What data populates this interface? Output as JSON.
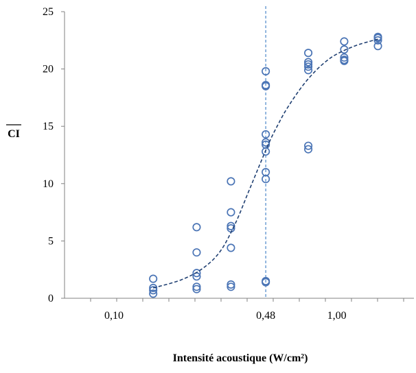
{
  "chart_data": {
    "type": "scatter",
    "xlabel": "Intensité acoustique (W/cm²)",
    "ylabel": "CI",
    "ylabel_overline": true,
    "x_tick_labels": [
      {
        "x": 0.1,
        "label": "0,10"
      },
      {
        "x": 0.48,
        "label": "0,48"
      },
      {
        "x": 1.0,
        "label": "1,00"
      }
    ],
    "y_ticks": [
      0,
      5,
      10,
      15,
      20,
      25
    ],
    "ylim": [
      0,
      25
    ],
    "x_axis_display_range": [
      0.06,
      2.22
    ],
    "x_axis_note": "log-like spacing",
    "marker": "open-circle",
    "marker_color": "#4a74b5",
    "points": [
      {
        "x": 0.15,
        "y": 1.7
      },
      {
        "x": 0.15,
        "y": 0.9
      },
      {
        "x": 0.15,
        "y": 0.7
      },
      {
        "x": 0.15,
        "y": 0.4
      },
      {
        "x": 0.235,
        "y": 6.2
      },
      {
        "x": 0.235,
        "y": 4.0
      },
      {
        "x": 0.235,
        "y": 2.2
      },
      {
        "x": 0.235,
        "y": 1.9
      },
      {
        "x": 0.235,
        "y": 1.0
      },
      {
        "x": 0.235,
        "y": 0.8
      },
      {
        "x": 0.335,
        "y": 10.2
      },
      {
        "x": 0.335,
        "y": 7.5
      },
      {
        "x": 0.335,
        "y": 6.3
      },
      {
        "x": 0.335,
        "y": 6.1
      },
      {
        "x": 0.335,
        "y": 4.4
      },
      {
        "x": 0.335,
        "y": 1.2
      },
      {
        "x": 0.335,
        "y": 1.0
      },
      {
        "x": 0.48,
        "y": 19.8
      },
      {
        "x": 0.48,
        "y": 18.6
      },
      {
        "x": 0.48,
        "y": 18.5
      },
      {
        "x": 0.48,
        "y": 14.3
      },
      {
        "x": 0.48,
        "y": 13.6
      },
      {
        "x": 0.48,
        "y": 13.4
      },
      {
        "x": 0.48,
        "y": 12.8
      },
      {
        "x": 0.48,
        "y": 11.0
      },
      {
        "x": 0.48,
        "y": 10.4
      },
      {
        "x": 0.48,
        "y": 1.5
      },
      {
        "x": 0.48,
        "y": 1.4
      },
      {
        "x": 0.745,
        "y": 21.4
      },
      {
        "x": 0.745,
        "y": 20.6
      },
      {
        "x": 0.745,
        "y": 20.4
      },
      {
        "x": 0.745,
        "y": 20.2
      },
      {
        "x": 0.745,
        "y": 19.9
      },
      {
        "x": 0.745,
        "y": 13.3
      },
      {
        "x": 0.745,
        "y": 13.0
      },
      {
        "x": 1.08,
        "y": 22.4
      },
      {
        "x": 1.08,
        "y": 21.7
      },
      {
        "x": 1.08,
        "y": 21.0
      },
      {
        "x": 1.08,
        "y": 20.8
      },
      {
        "x": 1.08,
        "y": 20.7
      },
      {
        "x": 1.53,
        "y": 22.8
      },
      {
        "x": 1.53,
        "y": 22.7
      },
      {
        "x": 1.53,
        "y": 22.5
      },
      {
        "x": 1.53,
        "y": 22.0
      }
    ],
    "trend_curve": {
      "style": "dashed",
      "color": "#1f3f72",
      "x": [
        0.15,
        0.2,
        0.25,
        0.3,
        0.35,
        0.4,
        0.45,
        0.5,
        0.55,
        0.6,
        0.7,
        0.8,
        0.9,
        1.0,
        1.2,
        1.4,
        1.53
      ],
      "y": [
        0.9,
        1.6,
        2.6,
        4.1,
        6.5,
        9.2,
        11.6,
        13.7,
        15.3,
        16.6,
        18.5,
        19.8,
        20.7,
        21.3,
        22.0,
        22.4,
        22.6
      ]
    },
    "vertical_reference_line": {
      "x": 0.48,
      "style": "dashed",
      "color": "#4a86c8"
    },
    "grid": false,
    "legend": "none"
  }
}
